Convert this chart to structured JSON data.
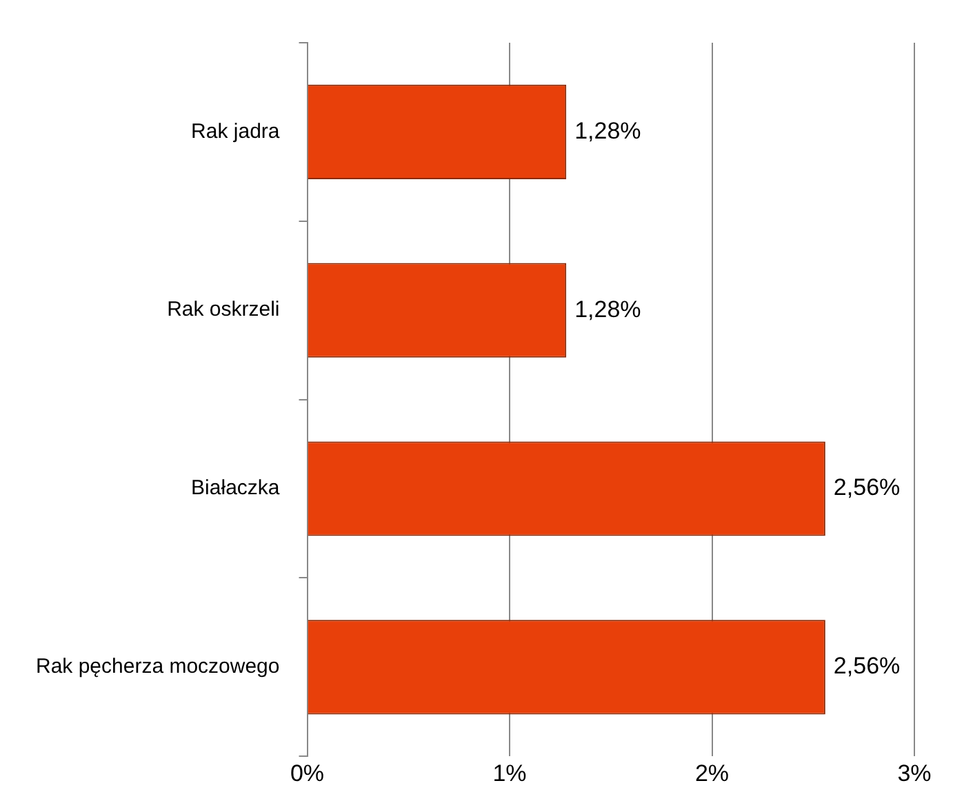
{
  "chart_data": {
    "type": "bar",
    "orientation": "horizontal",
    "categories": [
      "Rak jadra",
      "Rak oskrzeli",
      "Białaczka",
      "Rak pęcherza moczowego"
    ],
    "values": [
      1.28,
      1.28,
      2.56,
      2.56
    ],
    "color": "#e8400a",
    "value_labels": [
      "1,28%",
      "1,28%",
      "2,56%",
      "2,56%"
    ],
    "xlim": [
      0,
      3
    ],
    "xticks": [
      {
        "value": 0,
        "label": "0%"
      },
      {
        "value": 1,
        "label": "1%"
      },
      {
        "value": 2,
        "label": "2%"
      },
      {
        "value": 3,
        "label": "3%"
      }
    ],
    "grid": "x",
    "legend": false
  }
}
